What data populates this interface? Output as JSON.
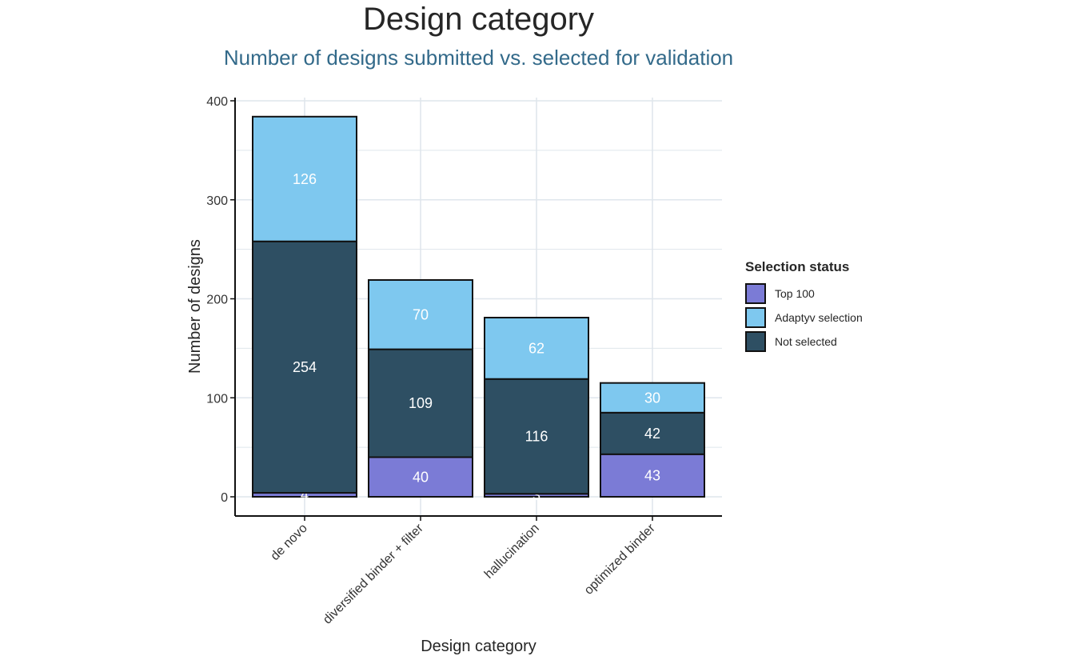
{
  "title": "Design category",
  "subtitle": "Number of designs submitted vs. selected for validation",
  "colors": {
    "top100": "#7b7bd6",
    "adaptyv": "#7ec8ef",
    "not_selected": "#2e4f63",
    "grid": "#dfe6ec",
    "axis": "#111111"
  },
  "legend": {
    "title": "Selection status",
    "items": [
      {
        "label": "Top 100",
        "color": "#7b7bd6"
      },
      {
        "label": "Adaptyv selection",
        "color": "#7ec8ef"
      },
      {
        "label": "Not selected",
        "color": "#2e4f63"
      }
    ]
  },
  "chart_data": {
    "type": "bar",
    "stacked": true,
    "xlabel": "Design category",
    "ylabel": "Number of designs",
    "categories": [
      "de novo",
      "diversified binder + filter",
      "hallucination",
      "optimized binder"
    ],
    "ylim": [
      0,
      400
    ],
    "yticks": [
      0,
      100,
      200,
      300,
      400
    ],
    "series": [
      {
        "name": "Top 100",
        "values": [
          4,
          40,
          3,
          43
        ]
      },
      {
        "name": "Not selected",
        "values": [
          254,
          109,
          116,
          42
        ]
      },
      {
        "name": "Adaptyv selection",
        "values": [
          126,
          70,
          62,
          30
        ]
      }
    ],
    "legend_position": "right",
    "grid": true
  }
}
